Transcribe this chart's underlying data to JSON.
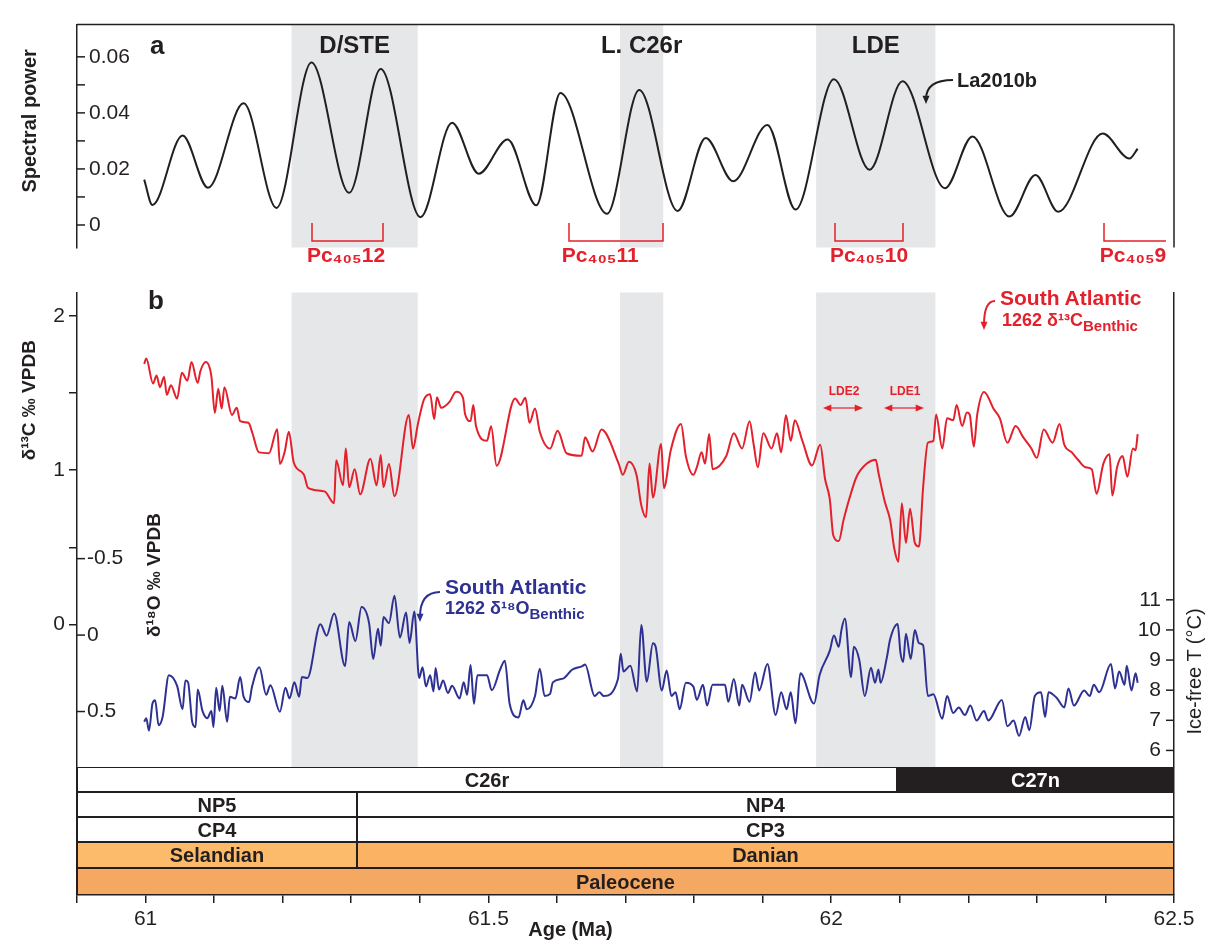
{
  "chart_data": [
    {
      "type": "line",
      "ylabel": "Spectral power",
      "xlim": [
        60.9,
        62.5
      ],
      "ylim": [
        -0.008,
        0.0715
      ],
      "yticks": [
        0,
        {
          "value": 0.01,
          "label": null
        },
        0.02,
        {
          "value": 0.03,
          "label": null
        },
        0.04,
        {
          "value": 0.05,
          "label": null
        },
        0.06
      ],
      "tick_labels": "y",
      "bands": [
        {
          "axis": "x",
          "from": 61.213,
          "to": 61.397,
          "label": "D/STE",
          "color": "#e6e7e8"
        },
        {
          "axis": "x",
          "from": 61.692,
          "to": 61.755,
          "label": "L. C26r",
          "color": "#e6e7e8"
        },
        {
          "axis": "x",
          "from": 61.978,
          "to": 62.152,
          "label": "LDE",
          "color": "#e6e7e8"
        }
      ],
      "annotations": [
        "a",
        "La2010b",
        "Pc₄₀₅12",
        {
          "text": "Pc₄₀₅11",
          "x": 61.755,
          "y": 0.007
        },
        "Pc₄₀₅10",
        "Pc₄₀₅9"
      ],
      "series": [
        {
          "color": "#231f20",
          "x": [
            60.998,
            61.01,
            61.054,
            61.091,
            61.143,
            61.191,
            61.242,
            61.297,
            61.343,
            61.401,
            61.447,
            61.486,
            61.528,
            61.57,
            61.605,
            61.673,
            61.72,
            61.776,
            61.817,
            61.857,
            61.907,
            61.948,
            62.004,
            62.056,
            62.104,
            62.166,
            62.206,
            62.26,
            62.298,
            62.331,
            62.396,
            62.435,
            62.447
          ],
          "values": [
            0.0162,
            0.0071,
            0.0319,
            0.0133,
            0.0434,
            0.0061,
            0.058,
            0.0115,
            0.0557,
            0.0028,
            0.0365,
            0.0183,
            0.0305,
            0.007,
            0.0471,
            0.004,
            0.0482,
            0.005,
            0.031,
            0.0156,
            0.0357,
            0.0055,
            0.052,
            0.0197,
            0.0513,
            0.0131,
            0.0316,
            0.003,
            0.0178,
            0.0047,
            0.0326,
            0.0237,
            0.0272
          ]
        }
      ]
    },
    {
      "type": "line",
      "xlabel": "Age (Ma)",
      "ylabel": "δ¹³C ‰ VPDB",
      "y2label": "δ¹⁸O ‰ VPDB",
      "y3label": "Ice-free T (°C)",
      "xlim": [
        60.9,
        62.5
      ],
      "xticks": [
        {
          "value": 60.9,
          "label": null
        },
        61,
        {
          "value": 61.1,
          "label": null
        },
        {
          "value": 61.2,
          "label": null
        },
        {
          "value": 61.3,
          "label": null
        },
        {
          "value": 61.4,
          "label": null
        },
        61.5,
        {
          "value": 61.6,
          "label": null
        },
        {
          "value": 61.7,
          "label": null
        },
        {
          "value": 61.8,
          "label": null
        },
        {
          "value": 61.9,
          "label": null
        },
        62,
        {
          "value": 62.1,
          "label": null
        },
        {
          "value": 62.2,
          "label": null
        },
        {
          "value": 62.3,
          "label": null
        },
        {
          "value": 62.4,
          "label": null
        },
        62.5
      ],
      "ylim": [
        -1.75,
        2.15
      ],
      "yticks": [
        0,
        {
          "value": 0.5,
          "label": null
        },
        1,
        {
          "value": 1.5,
          "label": null
        },
        2
      ],
      "y2lim": [
        1.7,
        -2.24
      ],
      "y2ticks": [
        -0.5,
        0,
        0.5
      ],
      "y3lim": [
        1.2,
        21.2
      ],
      "y3ticks": [
        6,
        7,
        8,
        9,
        10,
        11
      ],
      "bands": [
        {
          "axis": "x",
          "from": 61.213,
          "to": 61.397,
          "color": "#e6e7e8"
        },
        {
          "axis": "x",
          "from": 61.692,
          "to": 61.755,
          "color": "#e6e7e8"
        },
        {
          "axis": "x",
          "from": 61.978,
          "to": 62.152,
          "color": "#e6e7e8"
        }
      ],
      "annotations": [
        "b",
        "South Atlantic",
        "1262 δ¹³C$_{Benthic}$",
        "South Atlantic",
        "1262 δ¹⁸O$_{Benthic}$",
        "LDE2",
        "LDE1",
        "C26r",
        "C27n",
        "NP5",
        "NP4",
        "CP4",
        "CP3",
        "Selandian",
        "Danian",
        "Paleocene"
      ],
      "series": [
        {
          "color": "#e3202b",
          "x": [
            60.998,
            61.001,
            61.011,
            61.016,
            61.021,
            61.027,
            61.031,
            61.037,
            61.046,
            61.053,
            61.061,
            61.067,
            61.076,
            61.08,
            61.088,
            61.096,
            61.101,
            61.106,
            61.111,
            61.115,
            61.126,
            61.133,
            61.138,
            61.15,
            61.156,
            61.165,
            61.18,
            61.192,
            61.196,
            61.203,
            61.209,
            61.216,
            61.231,
            61.237,
            61.261,
            61.275,
            61.278,
            61.288,
            61.292,
            61.297,
            61.305,
            61.313,
            61.328,
            61.337,
            61.343,
            61.347,
            61.355,
            61.363,
            61.384,
            61.39,
            61.397,
            61.406,
            61.415,
            61.421,
            61.425,
            61.431,
            61.443,
            61.453,
            61.463,
            61.466,
            61.474,
            61.478,
            61.482,
            61.498,
            61.504,
            61.512,
            61.539,
            61.547,
            61.554,
            61.56,
            61.568,
            61.575,
            61.59,
            61.601,
            61.614,
            61.636,
            61.641,
            61.652,
            61.665,
            61.69,
            61.696,
            61.705,
            61.716,
            61.723,
            61.73,
            61.735,
            61.74,
            61.752,
            61.756,
            61.766,
            61.781,
            61.788,
            61.799,
            61.804,
            61.811,
            61.816,
            61.822,
            61.827,
            61.847,
            61.858,
            61.87,
            61.881,
            61.887,
            61.893,
            61.901,
            61.913,
            61.921,
            61.927,
            61.934,
            61.941,
            61.947,
            61.958,
            61.972,
            61.984,
            61.991,
            61.998,
            62.003,
            62.011,
            62.018,
            62.027,
            62.037,
            62.052,
            62.065,
            62.069,
            62.078,
            62.086,
            62.092,
            62.098,
            62.103,
            62.109,
            62.115,
            62.122,
            62.128,
            62.134,
            62.141,
            62.149,
            62.153,
            62.162,
            62.169,
            62.178,
            62.183,
            62.191,
            62.198,
            62.202,
            62.208,
            62.213,
            62.223,
            62.237,
            62.246,
            62.257,
            62.269,
            62.28,
            62.292,
            62.3,
            62.31,
            62.323,
            62.333,
            62.34,
            62.351,
            62.36,
            62.371,
            62.38,
            62.387,
            62.397,
            62.406,
            62.41,
            62.417,
            62.425,
            62.432,
            62.44,
            62.444,
            62.447
          ],
          "values": [
            1.689,
            1.723,
            1.561,
            1.613,
            1.538,
            1.603,
            1.488,
            1.55,
            1.464,
            1.631,
            1.58,
            1.7,
            1.566,
            1.642,
            1.7,
            1.608,
            1.371,
            1.527,
            1.399,
            1.538,
            1.358,
            1.404,
            1.318,
            1.307,
            1.238,
            1.117,
            1.11,
            1.265,
            1.041,
            1.121,
            1.249,
            1.052,
            0.971,
            0.886,
            0.863,
            0.786,
            1.064,
            0.902,
            1.14,
            0.89,
            1.006,
            0.844,
            1.075,
            0.902,
            1.098,
            0.89,
            1.041,
            0.832,
            1.358,
            1.14,
            1.295,
            1.457,
            1.492,
            1.33,
            1.473,
            1.404,
            1.441,
            1.508,
            1.469,
            1.364,
            1.318,
            1.423,
            1.284,
            1.191,
            1.284,
            1.029,
            1.464,
            1.423,
            1.469,
            1.307,
            1.399,
            1.249,
            1.14,
            1.256,
            1.11,
            1.094,
            1.214,
            1.121,
            1.263,
            1.043,
            0.97,
            1.055,
            0.97,
            0.774,
            0.696,
            1.043,
            0.823,
            1.17,
            0.884,
            1.129,
            1.3,
            1.092,
            0.97,
            1.019,
            1.116,
            1.043,
            1.234,
            1.007,
            1.092,
            1.239,
            1.141,
            1.317,
            1.165,
            1.019,
            1.239,
            1.141,
            1.239,
            1.116,
            1.356,
            1.19,
            1.324,
            1.19,
            1.031,
            1.165,
            0.945,
            0.811,
            0.579,
            0.542,
            0.677,
            0.823,
            0.958,
            1.043,
            1.068,
            0.982,
            0.799,
            0.677,
            0.493,
            0.408,
            0.787,
            0.53,
            0.75,
            0.53,
            0.506,
            0.884,
            1.178,
            1.19,
            1.361,
            1.141,
            1.336,
            1.324,
            1.422,
            1.287,
            1.373,
            1.361,
            1.153,
            1.361,
            1.507,
            1.397,
            1.336,
            1.178,
            1.287,
            1.214,
            1.141,
            1.08,
            1.263,
            1.178,
            1.3,
            1.165,
            1.116,
            1.068,
            1.019,
            1.007,
            0.848,
            1.043,
            1.104,
            0.836,
            1.019,
            1.092,
            0.958,
            1.141,
            1.129,
            1.234
          ]
        },
        {
          "color": "#2e3192",
          "axis": "y2",
          "x": [
            60.998,
            61.001,
            61.005,
            61.01,
            61.014,
            61.019,
            61.025,
            61.034,
            61.046,
            61.054,
            61.058,
            61.062,
            61.068,
            61.073,
            61.076,
            61.083,
            61.09,
            61.096,
            61.099,
            61.103,
            61.108,
            61.112,
            61.119,
            61.123,
            61.131,
            61.138,
            61.143,
            61.151,
            61.155,
            61.166,
            61.176,
            61.182,
            61.196,
            61.204,
            61.21,
            61.217,
            61.224,
            61.228,
            61.236,
            61.255,
            61.264,
            61.275,
            61.291,
            61.297,
            61.306,
            61.315,
            61.326,
            61.332,
            61.339,
            61.343,
            61.347,
            61.355,
            61.363,
            61.371,
            61.38,
            61.385,
            61.392,
            61.399,
            61.404,
            61.409,
            61.415,
            61.42,
            61.423,
            61.428,
            61.434,
            61.441,
            61.447,
            61.458,
            61.464,
            61.469,
            61.474,
            61.479,
            61.484,
            61.498,
            61.505,
            61.517,
            61.524,
            61.531,
            61.544,
            61.551,
            61.556,
            61.568,
            61.575,
            61.582,
            61.59,
            61.594,
            61.609,
            61.622,
            61.637,
            61.641,
            61.655,
            61.662,
            61.668,
            61.689,
            61.693,
            61.697,
            61.707,
            61.717,
            61.723,
            61.731,
            61.74,
            61.744,
            61.753,
            61.76,
            61.767,
            61.773,
            61.779,
            61.788,
            61.799,
            61.804,
            61.813,
            61.819,
            61.827,
            61.845,
            61.85,
            61.858,
            61.866,
            61.87,
            61.881,
            61.889,
            61.895,
            61.907,
            61.919,
            61.927,
            61.935,
            61.941,
            61.948,
            61.955,
            61.975,
            61.983,
            61.998,
            62.004,
            62.011,
            62.015,
            62.02,
            62.029,
            62.033,
            62.041,
            62.049,
            62.058,
            62.064,
            62.069,
            62.072,
            62.081,
            62.086,
            62.097,
            62.101,
            62.105,
            62.109,
            62.116,
            62.122,
            62.128,
            62.134,
            62.141,
            62.149,
            62.162,
            62.169,
            62.178,
            62.186,
            62.195,
            62.203,
            62.212,
            62.223,
            62.229,
            62.249,
            62.257,
            62.266,
            62.274,
            62.283,
            62.289,
            62.297,
            62.306,
            62.312,
            62.317,
            62.329,
            62.34,
            62.346,
            62.354,
            62.369,
            62.377,
            62.383,
            62.391,
            62.408,
            62.414,
            62.42,
            62.428,
            62.431,
            62.438,
            62.444,
            62.447
          ],
          "values": [
            0.567,
            0.544,
            0.625,
            0.449,
            0.426,
            0.59,
            0.532,
            0.262,
            0.332,
            0.485,
            0.297,
            0.309,
            0.567,
            0.602,
            0.356,
            0.496,
            0.544,
            0.496,
            0.602,
            0.344,
            0.496,
            0.332,
            0.567,
            0.403,
            0.415,
            0.274,
            0.403,
            0.438,
            0.344,
            0.211,
            0.391,
            0.328,
            0.501,
            0.344,
            0.415,
            0.309,
            0.403,
            0.274,
            0.281,
            -0.071,
            0.004,
            -0.141,
            0.203,
            -0.085,
            0.039,
            -0.184,
            -0.078,
            0.156,
            -0.042,
            0.07,
            -0.118,
            -0.078,
            -0.258,
            0.016,
            -0.148,
            0.051,
            -0.155,
            0.281,
            0.211,
            0.337,
            0.262,
            0.368,
            0.215,
            0.356,
            0.297,
            0.379,
            0.332,
            0.415,
            0.309,
            0.391,
            0.196,
            0.449,
            0.262,
            0.262,
            0.361,
            0.227,
            0.168,
            0.449,
            0.539,
            0.426,
            0.485,
            0.398,
            0.22,
            0.398,
            0.384,
            0.309,
            0.285,
            0.227,
            0.203,
            0.192,
            0.398,
            0.374,
            0.399,
            0.287,
            0.122,
            0.238,
            0.201,
            0.369,
            -0.066,
            0.305,
            0.053,
            0.077,
            0.362,
            0.231,
            0.399,
            0.374,
            0.485,
            0.312,
            0.337,
            0.424,
            0.325,
            0.461,
            0.325,
            0.325,
            0.436,
            0.287,
            0.461,
            0.325,
            0.436,
            0.245,
            0.362,
            0.189,
            0.523,
            0.374,
            0.485,
            0.374,
            0.577,
            0.25,
            0.448,
            0.263,
            0.102,
            0.003,
            0.077,
            -0.034,
            -0.108,
            0.275,
            0.077,
            0.164,
            0.399,
            0.213,
            0.312,
            0.225,
            0.312,
            0.151,
            0.028,
            -0.072,
            0.115,
            0.176,
            -0.009,
            0.156,
            -0.034,
            0.053,
            0.065,
            0.399,
            0.387,
            0.547,
            0.399,
            0.51,
            0.473,
            0.523,
            0.461,
            0.559,
            0.497,
            0.559,
            0.424,
            0.597,
            0.559,
            0.659,
            0.535,
            0.622,
            0.399,
            0.374,
            0.535,
            0.374,
            0.411,
            0.473,
            0.349,
            0.461,
            0.362,
            0.399,
            0.325,
            0.374,
            0.189,
            0.349,
            0.238,
            0.325,
            0.201,
            0.362,
            0.25,
            0.312
          ]
        }
      ]
    }
  ]
}
